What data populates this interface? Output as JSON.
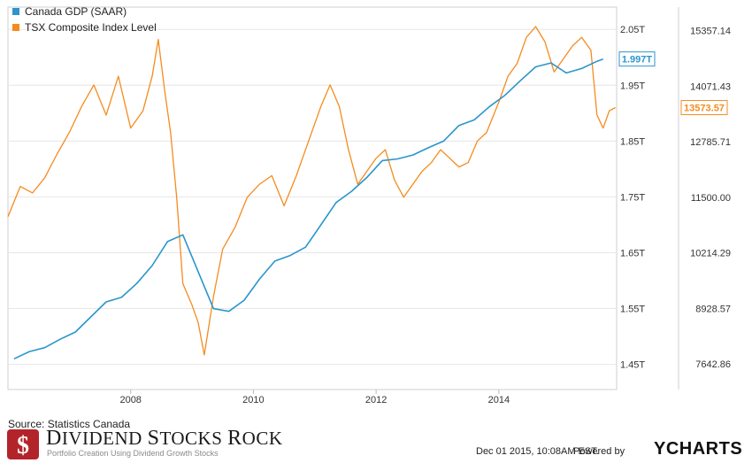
{
  "chart_data": {
    "type": "line",
    "legend_position": "top-left",
    "grid": true,
    "x_ticks": [
      "2008",
      "2010",
      "2012",
      "2014"
    ],
    "x_range": [
      2006.0,
      2015.92
    ],
    "left_axis": {
      "range": [
        1.405,
        2.09
      ],
      "ticks": [
        {
          "value": 1.45,
          "label": "1.45T"
        },
        {
          "value": 1.55,
          "label": "1.55T"
        },
        {
          "value": 1.65,
          "label": "1.65T"
        },
        {
          "value": 1.75,
          "label": "1.75T"
        },
        {
          "value": 1.85,
          "label": "1.85T"
        },
        {
          "value": 1.95,
          "label": "1.95T"
        },
        {
          "value": 2.05,
          "label": "2.05T"
        }
      ]
    },
    "right_axis": {
      "range": [
        7050,
        15900
      ],
      "ticks": [
        {
          "value": 7642.86,
          "label": "7642.86"
        },
        {
          "value": 8928.57,
          "label": "8928.57"
        },
        {
          "value": 10214.29,
          "label": "10214.29"
        },
        {
          "value": 11500.0,
          "label": "11500.00"
        },
        {
          "value": 12785.71,
          "label": "12785.71"
        },
        {
          "value": 14071.43,
          "label": "14071.43"
        },
        {
          "value": 15357.14,
          "label": "15357.14"
        }
      ]
    },
    "series": [
      {
        "name": "Canada GDP (SAAR)",
        "color": "#2b95cc",
        "axis": "left",
        "last_label": "1.997T",
        "points": [
          [
            2006.1,
            1.46
          ],
          [
            2006.35,
            1.473
          ],
          [
            2006.6,
            1.48
          ],
          [
            2006.85,
            1.495
          ],
          [
            2007.1,
            1.508
          ],
          [
            2007.35,
            1.535
          ],
          [
            2007.6,
            1.562
          ],
          [
            2007.85,
            1.57
          ],
          [
            2008.1,
            1.595
          ],
          [
            2008.35,
            1.627
          ],
          [
            2008.6,
            1.67
          ],
          [
            2008.85,
            1.682
          ],
          [
            2009.1,
            1.616
          ],
          [
            2009.35,
            1.55
          ],
          [
            2009.6,
            1.545
          ],
          [
            2009.85,
            1.565
          ],
          [
            2010.1,
            1.603
          ],
          [
            2010.35,
            1.635
          ],
          [
            2010.6,
            1.645
          ],
          [
            2010.85,
            1.66
          ],
          [
            2011.1,
            1.7
          ],
          [
            2011.35,
            1.74
          ],
          [
            2011.6,
            1.76
          ],
          [
            2011.85,
            1.785
          ],
          [
            2012.1,
            1.815
          ],
          [
            2012.35,
            1.818
          ],
          [
            2012.6,
            1.825
          ],
          [
            2012.85,
            1.838
          ],
          [
            2013.1,
            1.85
          ],
          [
            2013.35,
            1.878
          ],
          [
            2013.6,
            1.888
          ],
          [
            2013.85,
            1.912
          ],
          [
            2014.1,
            1.932
          ],
          [
            2014.35,
            1.958
          ],
          [
            2014.6,
            1.983
          ],
          [
            2014.85,
            1.99
          ],
          [
            2015.1,
            1.972
          ],
          [
            2015.35,
            1.98
          ],
          [
            2015.6,
            1.993
          ],
          [
            2015.7,
            1.997
          ]
        ]
      },
      {
        "name": "TSX Composite Index Level",
        "color": "#f58b1f",
        "axis": "right",
        "last_label": "13573.57",
        "points": [
          [
            2006.0,
            11050
          ],
          [
            2006.2,
            11750
          ],
          [
            2006.4,
            11600
          ],
          [
            2006.6,
            11950
          ],
          [
            2006.8,
            12500
          ],
          [
            2007.0,
            13000
          ],
          [
            2007.2,
            13600
          ],
          [
            2007.4,
            14100
          ],
          [
            2007.6,
            13400
          ],
          [
            2007.8,
            14300
          ],
          [
            2008.0,
            13100
          ],
          [
            2008.2,
            13500
          ],
          [
            2008.35,
            14300
          ],
          [
            2008.45,
            15150
          ],
          [
            2008.55,
            14000
          ],
          [
            2008.65,
            13000
          ],
          [
            2008.75,
            11500
          ],
          [
            2008.85,
            9500
          ],
          [
            2009.0,
            9000
          ],
          [
            2009.1,
            8600
          ],
          [
            2009.2,
            7850
          ],
          [
            2009.35,
            9200
          ],
          [
            2009.5,
            10300
          ],
          [
            2009.7,
            10800
          ],
          [
            2009.9,
            11500
          ],
          [
            2010.1,
            11800
          ],
          [
            2010.3,
            12000
          ],
          [
            2010.5,
            11300
          ],
          [
            2010.7,
            12000
          ],
          [
            2010.9,
            12800
          ],
          [
            2011.1,
            13600
          ],
          [
            2011.25,
            14100
          ],
          [
            2011.4,
            13600
          ],
          [
            2011.55,
            12600
          ],
          [
            2011.7,
            11800
          ],
          [
            2011.85,
            12100
          ],
          [
            2012.0,
            12400
          ],
          [
            2012.15,
            12600
          ],
          [
            2012.3,
            11900
          ],
          [
            2012.45,
            11500
          ],
          [
            2012.6,
            11800
          ],
          [
            2012.75,
            12100
          ],
          [
            2012.9,
            12300
          ],
          [
            2013.05,
            12600
          ],
          [
            2013.2,
            12400
          ],
          [
            2013.35,
            12200
          ],
          [
            2013.5,
            12300
          ],
          [
            2013.65,
            12800
          ],
          [
            2013.8,
            13000
          ],
          [
            2014.0,
            13700
          ],
          [
            2014.15,
            14300
          ],
          [
            2014.3,
            14600
          ],
          [
            2014.45,
            15200
          ],
          [
            2014.6,
            15450
          ],
          [
            2014.75,
            15100
          ],
          [
            2014.9,
            14400
          ],
          [
            2015.05,
            14700
          ],
          [
            2015.2,
            15000
          ],
          [
            2015.35,
            15200
          ],
          [
            2015.5,
            14900
          ],
          [
            2015.6,
            13400
          ],
          [
            2015.7,
            13100
          ],
          [
            2015.8,
            13500
          ],
          [
            2015.9,
            13574
          ]
        ]
      }
    ]
  },
  "footer": {
    "source": "Source: Statistics Canada",
    "brand_d": "D",
    "brand_ividend": "IVIDEND ",
    "brand_s": "S",
    "brand_tocks": "TOCKS ",
    "brand_r": "R",
    "brand_ock": "OCK",
    "tagline": "Portfolio Creation Using Dividend Growth Stocks",
    "timestamp": "Dec 01 2015, 10:08AM EST.",
    "powered_by": "Powered by",
    "ycharts": "YCHARTS"
  }
}
